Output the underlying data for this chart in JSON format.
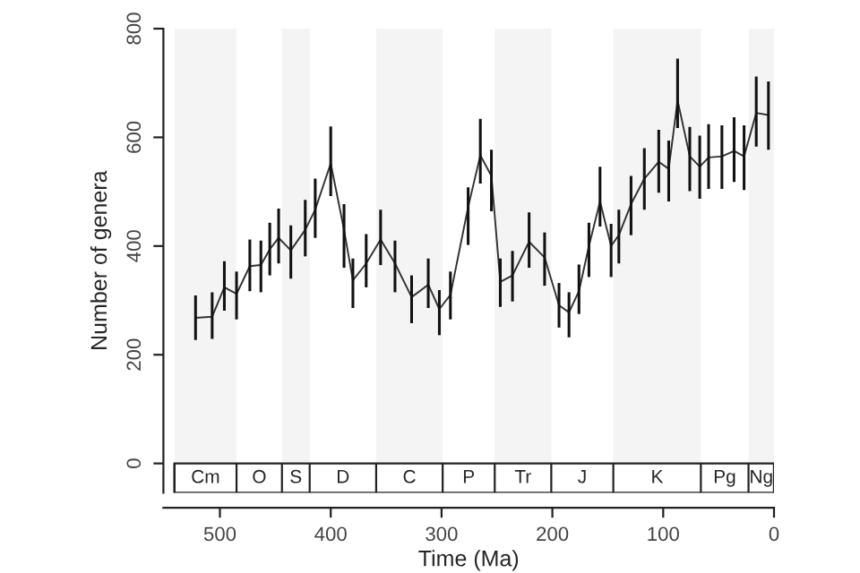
{
  "chart_data": {
    "type": "line",
    "xlabel": "Time (Ma)",
    "ylabel": "Number of genera",
    "x": [
      522,
      507,
      496,
      485,
      473,
      463,
      455,
      447,
      436,
      423,
      414,
      400,
      388,
      380,
      368,
      355,
      342,
      327,
      312,
      302,
      292,
      276,
      265,
      255,
      247,
      236,
      221,
      207,
      194,
      185,
      176,
      167,
      157,
      147,
      140,
      129,
      117,
      104,
      95,
      87,
      76,
      67,
      59,
      47,
      36,
      27,
      16,
      5
    ],
    "series": [
      {
        "color": "#333333",
        "values": [
          268,
          270,
          324,
          312,
          363,
          365,
          394,
          415,
          392,
          430,
          467,
          552,
          430,
          337,
          368,
          412,
          368,
          306,
          329,
          284,
          310,
          472,
          567,
          529,
          334,
          346,
          408,
          379,
          291,
          278,
          317,
          400,
          482,
          400,
          420,
          477,
          524,
          555,
          542,
          668,
          565,
          546,
          563,
          565,
          575,
          565,
          645,
          641
        ],
        "errors": [
          [
            227,
            309
          ],
          [
            229,
            315
          ],
          [
            281,
            372
          ],
          [
            265,
            353
          ],
          [
            317,
            412
          ],
          [
            315,
            410
          ],
          [
            346,
            443
          ],
          [
            368,
            469
          ],
          [
            340,
            438
          ],
          [
            381,
            485
          ],
          [
            415,
            524
          ],
          [
            492,
            620
          ],
          [
            360,
            477
          ],
          [
            286,
            377
          ],
          [
            324,
            422
          ],
          [
            365,
            467
          ],
          [
            315,
            410
          ],
          [
            258,
            346
          ],
          [
            286,
            377
          ],
          [
            236,
            319
          ],
          [
            265,
            353
          ],
          [
            402,
            508
          ],
          [
            515,
            634
          ],
          [
            464,
            577
          ],
          [
            288,
            377
          ],
          [
            298,
            391
          ],
          [
            360,
            462
          ],
          [
            327,
            425
          ],
          [
            250,
            332
          ],
          [
            232,
            315
          ],
          [
            275,
            366
          ],
          [
            343,
            443
          ],
          [
            436,
            546
          ],
          [
            343,
            441
          ],
          [
            368,
            467
          ],
          [
            420,
            529
          ],
          [
            467,
            580
          ],
          [
            498,
            614
          ],
          [
            482,
            594
          ],
          [
            617,
            745
          ],
          [
            501,
            619
          ],
          [
            487,
            603
          ],
          [
            505,
            624
          ],
          [
            505,
            622
          ],
          [
            518,
            637
          ],
          [
            503,
            622
          ],
          [
            583,
            712
          ],
          [
            577,
            703
          ]
        ]
      }
    ],
    "xlim": [
      551,
      0
    ],
    "xticks": [
      500,
      400,
      300,
      200,
      100,
      0
    ],
    "ylim": [
      -54,
      800
    ],
    "yticks": [
      0,
      200,
      400,
      600,
      800
    ],
    "bands": [
      {
        "axis": "x",
        "from": 541,
        "to": 485,
        "label": "Cm",
        "color": "#f4f4f4"
      },
      {
        "axis": "x",
        "from": 444,
        "to": 419,
        "label": "S",
        "color": "#f4f4f4"
      },
      {
        "axis": "x",
        "from": 359,
        "to": 299,
        "label": "C",
        "color": "#f4f4f4"
      },
      {
        "axis": "x",
        "from": 252,
        "to": 201,
        "label": "Tr",
        "color": "#f4f4f4"
      },
      {
        "axis": "x",
        "from": 145,
        "to": 66,
        "label": "K",
        "color": "#f4f4f4"
      },
      {
        "axis": "x",
        "from": 23,
        "to": 0,
        "label": "Ng",
        "color": "#f4f4f4"
      }
    ],
    "annotations": [
      "O",
      "D",
      "P",
      "J",
      "Pg"
    ],
    "grid": false,
    "legend": false
  }
}
